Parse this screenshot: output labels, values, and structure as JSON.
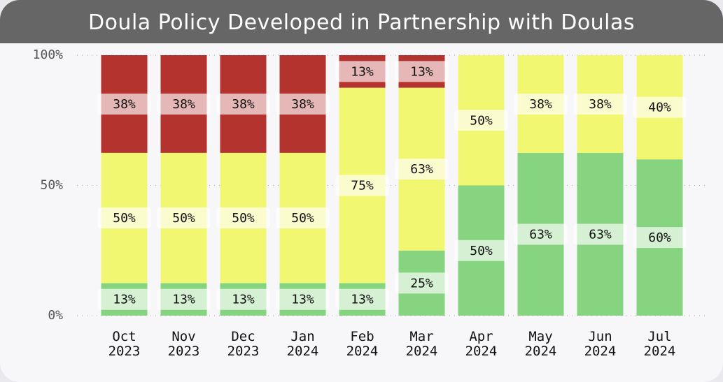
{
  "chart_data": {
    "type": "stacked_bar",
    "title": "Doula Policy Developed in Partnership with Doulas",
    "categories": [
      "Oct 2023",
      "Nov 2023",
      "Dec 2023",
      "Jan 2024",
      "Feb 2024",
      "Mar 2024",
      "Apr 2024",
      "May 2024",
      "Jun 2024",
      "Jul 2024"
    ],
    "series": [
      {
        "color": "#86d47f",
        "values": [
          12.5,
          12.5,
          12.5,
          12.5,
          12.5,
          25,
          50,
          62.5,
          62.5,
          60
        ],
        "value_labels": [
          "13%",
          "13%",
          "13%",
          "13%",
          "13%",
          "25%",
          "50%",
          "63%",
          "63%",
          "60%"
        ]
      },
      {
        "color": "#f2f772",
        "values": [
          50,
          50,
          50,
          50,
          75,
          62.5,
          50,
          37.5,
          37.5,
          40
        ],
        "value_labels": [
          "50%",
          "50%",
          "50%",
          "50%",
          "75%",
          "63%",
          "50%",
          "38%",
          "38%",
          "40%"
        ]
      },
      {
        "color": "#b5332e",
        "values": [
          37.5,
          37.5,
          37.5,
          37.5,
          12.5,
          12.5,
          0,
          0,
          0,
          0
        ],
        "value_labels": [
          "38%",
          "38%",
          "38%",
          "38%",
          "13%",
          "13%",
          null,
          null,
          null,
          null
        ]
      }
    ],
    "ylim": [
      0,
      100
    ],
    "yticks": [
      {
        "value": 0,
        "label": "0%"
      },
      {
        "value": 50,
        "label": "50%"
      },
      {
        "value": 100,
        "label": "100%"
      }
    ],
    "grid": true
  }
}
